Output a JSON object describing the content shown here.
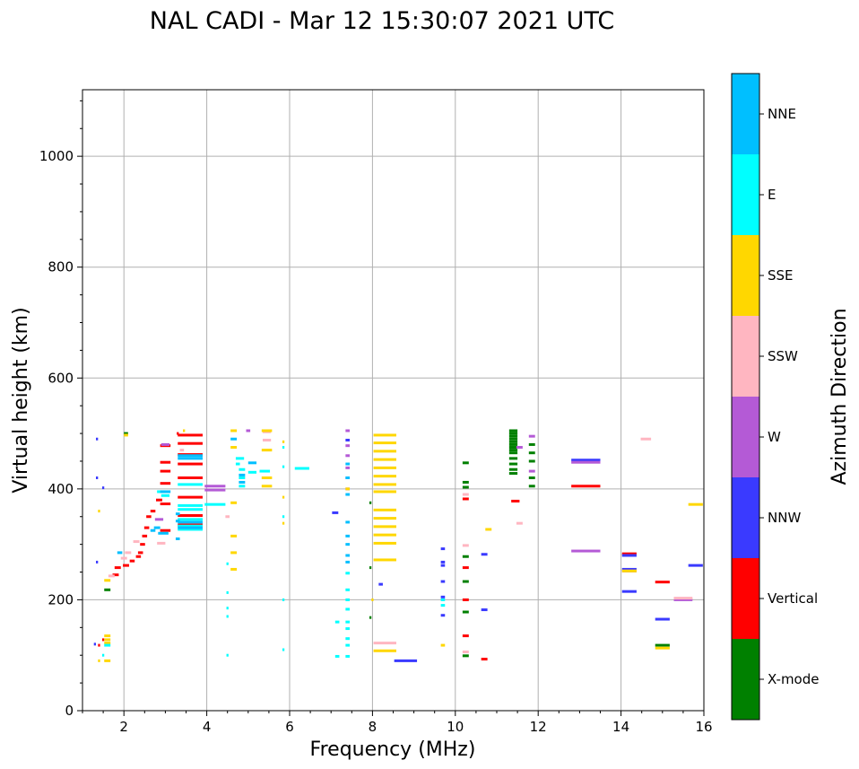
{
  "chart_data": {
    "type": "scatter",
    "title": "NAL CADI - Mar 12 15:30:07 2021 UTC",
    "xlabel": "Frequency (MHz)",
    "ylabel": "Virtual height (km)",
    "xlim": [
      1,
      16
    ],
    "ylim": [
      0,
      1120
    ],
    "xticks": [
      2,
      4,
      6,
      8,
      10,
      12,
      14,
      16
    ],
    "yticks": [
      0,
      200,
      400,
      600,
      800,
      1000
    ],
    "grid": true,
    "colorbar": {
      "label": "Azimuth Direction",
      "categories": [
        {
          "name": "X-mode",
          "color": "#008000"
        },
        {
          "name": "Vertical",
          "color": "#ff0000"
        },
        {
          "name": "NNW",
          "color": "#3a3aff"
        },
        {
          "name": "W",
          "color": "#b45ad6"
        },
        {
          "name": "SSW",
          "color": "#ffb6c1"
        },
        {
          "name": "SSE",
          "color": "#ffd700"
        },
        {
          "name": "E",
          "color": "#00ffff"
        },
        {
          "name": "NNE",
          "color": "#00bfff"
        }
      ]
    },
    "series": [
      {
        "name": "X-mode",
        "points": [
          [
            11.4,
            505,
            0.2
          ],
          [
            11.4,
            500,
            0.2
          ],
          [
            11.4,
            495,
            0.2
          ],
          [
            11.4,
            490,
            0.2
          ],
          [
            11.4,
            485,
            0.2
          ],
          [
            11.4,
            480,
            0.2
          ],
          [
            11.4,
            475,
            0.2
          ],
          [
            11.4,
            470,
            0.2
          ],
          [
            11.4,
            465,
            0.2
          ],
          [
            11.4,
            455,
            0.2
          ],
          [
            11.4,
            445,
            0.2
          ],
          [
            11.4,
            435,
            0.2
          ],
          [
            11.4,
            428,
            0.2
          ],
          [
            11.85,
            480,
            0.15
          ],
          [
            11.85,
            465,
            0.15
          ],
          [
            11.85,
            450,
            0.15
          ],
          [
            11.85,
            420,
            0.15
          ],
          [
            11.85,
            405,
            0.15
          ],
          [
            10.25,
            447,
            0.15
          ],
          [
            10.25,
            412,
            0.15
          ],
          [
            10.25,
            403,
            0.15
          ],
          [
            10.25,
            278,
            0.15
          ],
          [
            10.25,
            233,
            0.15
          ],
          [
            10.25,
            178,
            0.15
          ],
          [
            10.25,
            99,
            0.15
          ],
          [
            7.95,
            375,
            0.05
          ],
          [
            7.95,
            258,
            0.05
          ],
          [
            7.95,
            168,
            0.05
          ],
          [
            15.0,
            118,
            0.35
          ],
          [
            2.05,
            500,
            0.1
          ],
          [
            1.6,
            218,
            0.15
          ]
        ]
      },
      {
        "name": "Vertical",
        "points": [
          [
            3.6,
            497,
            0.6
          ],
          [
            3.6,
            482,
            0.6
          ],
          [
            3.6,
            462,
            0.6
          ],
          [
            3.6,
            445,
            0.6
          ],
          [
            3.6,
            420,
            0.6
          ],
          [
            3.6,
            385,
            0.6
          ],
          [
            3.6,
            352,
            0.6
          ],
          [
            3.6,
            335,
            0.6
          ],
          [
            3.0,
            478,
            0.25
          ],
          [
            3.0,
            448,
            0.25
          ],
          [
            3.0,
            432,
            0.25
          ],
          [
            3.0,
            410,
            0.25
          ],
          [
            3.0,
            373,
            0.25
          ],
          [
            3.0,
            325,
            0.25
          ],
          [
            2.85,
            380,
            0.15
          ],
          [
            2.7,
            360,
            0.12
          ],
          [
            2.6,
            350,
            0.12
          ],
          [
            2.55,
            330,
            0.12
          ],
          [
            2.5,
            315,
            0.12
          ],
          [
            2.45,
            300,
            0.12
          ],
          [
            2.4,
            285,
            0.12
          ],
          [
            2.35,
            278,
            0.12
          ],
          [
            2.2,
            270,
            0.12
          ],
          [
            2.05,
            262,
            0.15
          ],
          [
            1.85,
            258,
            0.15
          ],
          [
            1.8,
            245,
            0.15
          ],
          [
            1.5,
            128,
            0.05
          ],
          [
            1.4,
            118,
            0.05
          ],
          [
            3.3,
            500,
            0.05
          ],
          [
            11.45,
            378,
            0.2
          ],
          [
            10.25,
            382,
            0.15
          ],
          [
            10.25,
            258,
            0.15
          ],
          [
            10.25,
            200,
            0.15
          ],
          [
            10.25,
            135,
            0.15
          ],
          [
            10.7,
            93,
            0.15
          ],
          [
            13.15,
            405,
            0.7
          ],
          [
            14.2,
            283,
            0.35
          ],
          [
            15.0,
            232,
            0.35
          ]
        ]
      },
      {
        "name": "NNW",
        "points": [
          [
            13.15,
            452,
            0.7
          ],
          [
            14.2,
            280,
            0.35
          ],
          [
            14.2,
            255,
            0.35
          ],
          [
            14.2,
            215,
            0.35
          ],
          [
            15.0,
            165,
            0.35
          ],
          [
            15.8,
            262,
            0.35
          ],
          [
            8.8,
            90,
            0.55
          ],
          [
            9.7,
            292,
            0.1
          ],
          [
            9.7,
            268,
            0.1
          ],
          [
            9.7,
            262,
            0.1
          ],
          [
            9.7,
            233,
            0.1
          ],
          [
            9.7,
            205,
            0.1
          ],
          [
            9.7,
            172,
            0.1
          ],
          [
            10.7,
            282,
            0.15
          ],
          [
            10.7,
            182,
            0.15
          ],
          [
            7.1,
            357,
            0.15
          ],
          [
            7.4,
            488,
            0.1
          ],
          [
            8.2,
            228,
            0.1
          ],
          [
            1.35,
            490,
            0.05
          ],
          [
            1.35,
            420,
            0.05
          ],
          [
            1.5,
            402,
            0.05
          ],
          [
            1.35,
            268,
            0.05
          ],
          [
            1.3,
            120,
            0.05
          ]
        ]
      },
      {
        "name": "W",
        "points": [
          [
            4.2,
            405,
            0.5
          ],
          [
            4.2,
            398,
            0.5
          ],
          [
            3.0,
            480,
            0.2
          ],
          [
            2.85,
            345,
            0.2
          ],
          [
            5.0,
            505,
            0.1
          ],
          [
            7.4,
            505,
            0.1
          ],
          [
            7.4,
            478,
            0.1
          ],
          [
            7.4,
            460,
            0.1
          ],
          [
            7.4,
            438,
            0.1
          ],
          [
            7.4,
            420,
            0.1
          ],
          [
            7.4,
            400,
            0.1
          ],
          [
            11.85,
            495,
            0.15
          ],
          [
            11.85,
            432,
            0.15
          ],
          [
            11.55,
            475,
            0.15
          ],
          [
            13.15,
            448,
            0.7
          ],
          [
            13.15,
            288,
            0.7
          ],
          [
            14.2,
            252,
            0.35
          ],
          [
            15.5,
            200,
            0.45
          ]
        ]
      },
      {
        "name": "SSW",
        "points": [
          [
            8.3,
            122,
            0.55
          ],
          [
            10.25,
            298,
            0.15
          ],
          [
            10.25,
            390,
            0.15
          ],
          [
            10.25,
            106,
            0.15
          ],
          [
            11.55,
            338,
            0.15
          ],
          [
            14.6,
            490,
            0.25
          ],
          [
            2.1,
            285,
            0.15
          ],
          [
            2.0,
            275,
            0.15
          ],
          [
            2.3,
            305,
            0.15
          ],
          [
            2.9,
            302,
            0.2
          ],
          [
            1.7,
            243,
            0.15
          ],
          [
            3.4,
            470,
            0.1
          ],
          [
            4.5,
            350,
            0.1
          ],
          [
            15.5,
            203,
            0.45
          ],
          [
            5.45,
            503,
            0.2
          ],
          [
            5.45,
            488,
            0.2
          ]
        ]
      },
      {
        "name": "SSE",
        "points": [
          [
            8.3,
            497,
            0.55
          ],
          [
            8.3,
            483,
            0.55
          ],
          [
            8.3,
            468,
            0.55
          ],
          [
            8.3,
            453,
            0.55
          ],
          [
            8.3,
            438,
            0.55
          ],
          [
            8.3,
            423,
            0.55
          ],
          [
            8.3,
            408,
            0.55
          ],
          [
            8.3,
            395,
            0.55
          ],
          [
            8.3,
            362,
            0.55
          ],
          [
            8.3,
            347,
            0.55
          ],
          [
            8.3,
            332,
            0.55
          ],
          [
            8.3,
            317,
            0.55
          ],
          [
            8.3,
            302,
            0.55
          ],
          [
            8.3,
            272,
            0.55
          ],
          [
            8.3,
            108,
            0.55
          ],
          [
            1.6,
            135,
            0.15
          ],
          [
            1.6,
            128,
            0.15
          ],
          [
            1.6,
            122,
            0.15
          ],
          [
            1.6,
            235,
            0.15
          ],
          [
            1.6,
            90,
            0.15
          ],
          [
            1.4,
            90,
            0.05
          ],
          [
            1.4,
            360,
            0.05
          ],
          [
            2.05,
            497,
            0.1
          ],
          [
            4.65,
            505,
            0.15
          ],
          [
            4.65,
            475,
            0.15
          ],
          [
            4.65,
            375,
            0.15
          ],
          [
            4.65,
            315,
            0.15
          ],
          [
            4.65,
            285,
            0.15
          ],
          [
            4.65,
            255,
            0.15
          ],
          [
            5.45,
            505,
            0.25
          ],
          [
            5.45,
            470,
            0.25
          ],
          [
            5.45,
            420,
            0.25
          ],
          [
            5.45,
            405,
            0.25
          ],
          [
            5.85,
            485,
            0.05
          ],
          [
            5.85,
            385,
            0.05
          ],
          [
            5.85,
            338,
            0.05
          ],
          [
            10.8,
            327,
            0.15
          ],
          [
            14.2,
            252,
            0.35
          ],
          [
            15.0,
            113,
            0.35
          ],
          [
            15.8,
            372,
            0.35
          ],
          [
            9.7,
            118,
            0.1
          ],
          [
            8.0,
            200,
            0.05
          ],
          [
            3.45,
            505,
            0.05
          ],
          [
            7.4,
            400,
            0.1
          ]
        ]
      },
      {
        "name": "E",
        "points": [
          [
            3.6,
            408,
            0.6
          ],
          [
            3.6,
            370,
            0.6
          ],
          [
            3.6,
            363,
            0.6
          ],
          [
            3.6,
            345,
            0.6
          ],
          [
            3.6,
            333,
            0.6
          ],
          [
            3.6,
            327,
            0.6
          ],
          [
            4.2,
            372,
            0.5
          ],
          [
            4.85,
            420,
            0.15
          ],
          [
            4.85,
            405,
            0.15
          ],
          [
            4.85,
            435,
            0.15
          ],
          [
            4.75,
            445,
            0.1
          ],
          [
            4.8,
            455,
            0.2
          ],
          [
            5.1,
            430,
            0.2
          ],
          [
            5.4,
            432,
            0.25
          ],
          [
            6.3,
            437,
            0.35
          ],
          [
            7.4,
            248,
            0.1
          ],
          [
            7.4,
            218,
            0.1
          ],
          [
            7.4,
            200,
            0.1
          ],
          [
            7.4,
            183,
            0.1
          ],
          [
            7.4,
            160,
            0.1
          ],
          [
            7.4,
            148,
            0.1
          ],
          [
            7.4,
            130,
            0.1
          ],
          [
            7.4,
            118,
            0.1
          ],
          [
            7.4,
            98,
            0.1
          ],
          [
            7.15,
            160,
            0.1
          ],
          [
            7.15,
            98,
            0.1
          ],
          [
            9.7,
            200,
            0.1
          ],
          [
            9.7,
            190,
            0.1
          ],
          [
            5.85,
            475,
            0.05
          ],
          [
            5.85,
            440,
            0.05
          ],
          [
            5.85,
            350,
            0.05
          ],
          [
            5.85,
            200,
            0.05
          ],
          [
            5.85,
            110,
            0.05
          ],
          [
            4.5,
            100,
            0.05
          ],
          [
            4.5,
            185,
            0.05
          ],
          [
            4.5,
            213,
            0.05
          ],
          [
            4.5,
            265,
            0.05
          ],
          [
            4.5,
            170,
            0.05
          ],
          [
            2.9,
            395,
            0.2
          ],
          [
            3.0,
            388,
            0.2
          ],
          [
            1.6,
            118,
            0.15
          ],
          [
            1.5,
            100,
            0.05
          ]
        ]
      },
      {
        "name": "NNE",
        "points": [
          [
            3.6,
            460,
            0.6
          ],
          [
            3.6,
            455,
            0.6
          ],
          [
            3.6,
            340,
            0.6
          ],
          [
            3.6,
            330,
            0.6
          ],
          [
            3.0,
            395,
            0.25
          ],
          [
            2.95,
            320,
            0.25
          ],
          [
            2.8,
            330,
            0.15
          ],
          [
            2.7,
            325,
            0.12
          ],
          [
            3.3,
            355,
            0.1
          ],
          [
            3.3,
            342,
            0.1
          ],
          [
            3.3,
            310,
            0.1
          ],
          [
            4.85,
            425,
            0.15
          ],
          [
            4.85,
            412,
            0.15
          ],
          [
            4.65,
            490,
            0.15
          ],
          [
            7.4,
            445,
            0.1
          ],
          [
            7.4,
            420,
            0.1
          ],
          [
            7.4,
            390,
            0.1
          ],
          [
            7.4,
            340,
            0.1
          ],
          [
            7.4,
            315,
            0.1
          ],
          [
            7.4,
            300,
            0.1
          ],
          [
            7.4,
            280,
            0.1
          ],
          [
            7.4,
            268,
            0.1
          ],
          [
            5.1,
            447,
            0.2
          ],
          [
            1.9,
            285,
            0.12
          ]
        ]
      }
    ]
  }
}
